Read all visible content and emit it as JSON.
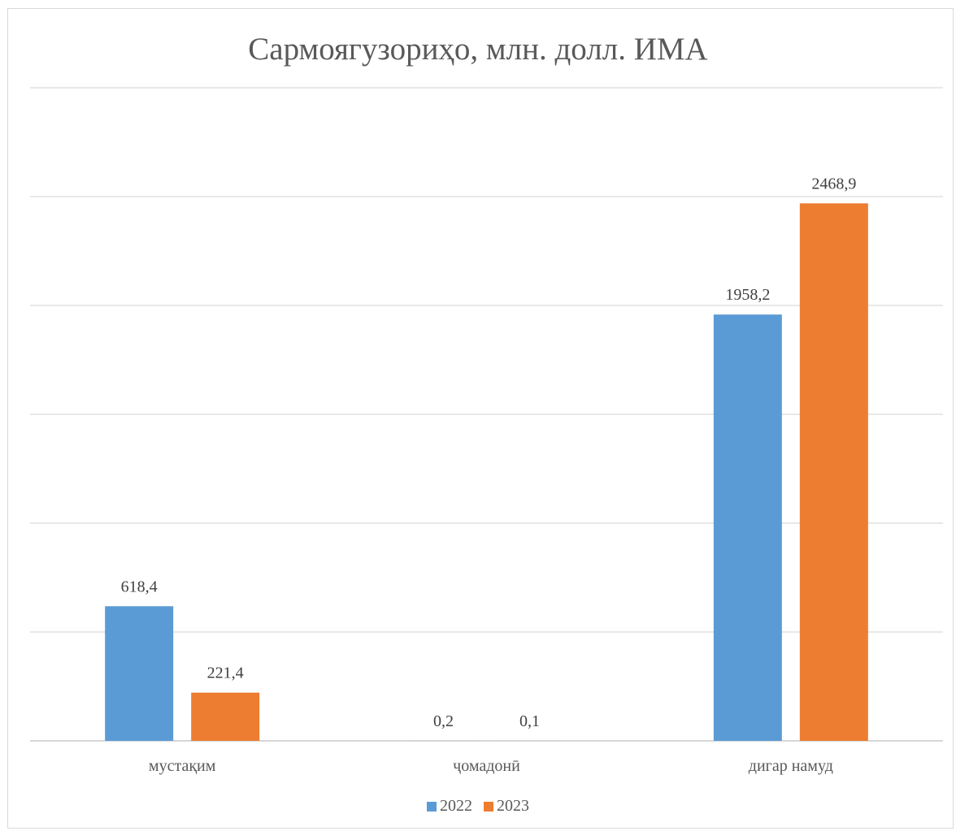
{
  "chart_data": {
    "type": "bar",
    "title": "Сармоягузориҳо, млн. долл. ИМА",
    "categories": [
      "мустақим",
      "ҷомадонӣ",
      "дигар намуд"
    ],
    "series": [
      {
        "name": "2022",
        "values": [
          618.4,
          0.2,
          1958.2
        ],
        "labels": [
          "618,4",
          "0,2",
          "1958,2"
        ],
        "color": "#5b9bd5"
      },
      {
        "name": "2023",
        "values": [
          221.4,
          0.1,
          2468.9
        ],
        "labels": [
          "221,4",
          "0,1",
          "2468,9"
        ],
        "color": "#ed7d31"
      }
    ],
    "ylim": [
      0,
      3000
    ],
    "grid": true,
    "legend_position": "bottom"
  }
}
